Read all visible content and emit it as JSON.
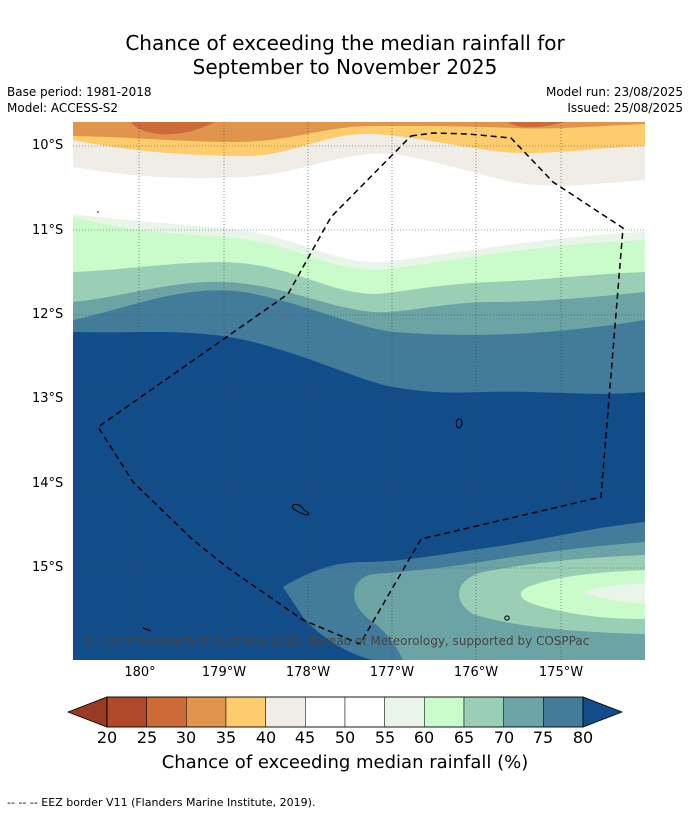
{
  "title_line1": "Chance of exceeding the median rainfall for",
  "title_line2": "September to November 2025",
  "meta": {
    "base_period": "Base period: 1981-2018",
    "model": "Model: ACCESS-S2",
    "model_run": "Model run: 23/08/2025",
    "issued": "Issued: 25/08/2025"
  },
  "lat_labels": [
    "10°S",
    "11°S",
    "12°S",
    "13°S",
    "14°S",
    "15°S"
  ],
  "lon_labels": [
    "180°",
    "179°W",
    "178°W",
    "177°W",
    "176°W",
    "175°W"
  ],
  "copyright": "© Commonwealth of Australia 2025, Bureau of Meteorology, supported by COSPPac",
  "colorbar": {
    "ticks": [
      "20",
      "25",
      "30",
      "35",
      "40",
      "45",
      "50",
      "55",
      "60",
      "65",
      "70",
      "75",
      "80"
    ],
    "colors": [
      "#b04a2a",
      "#cc6a38",
      "#e0944c",
      "#fdcc6c",
      "#f0ece6",
      "#ffffff",
      "#ffffff",
      "#eaf5ea",
      "#cafbcb",
      "#9acfb6",
      "#6ca3a4",
      "#437c9a"
    ],
    "under_color": "#9a3a23",
    "over_color": "#124d8a",
    "label": "Chance of exceeding median rainfall (%)"
  },
  "footer": "-- -- -- EEZ border V11 (Flanders Marine Institute, 2019)."
}
